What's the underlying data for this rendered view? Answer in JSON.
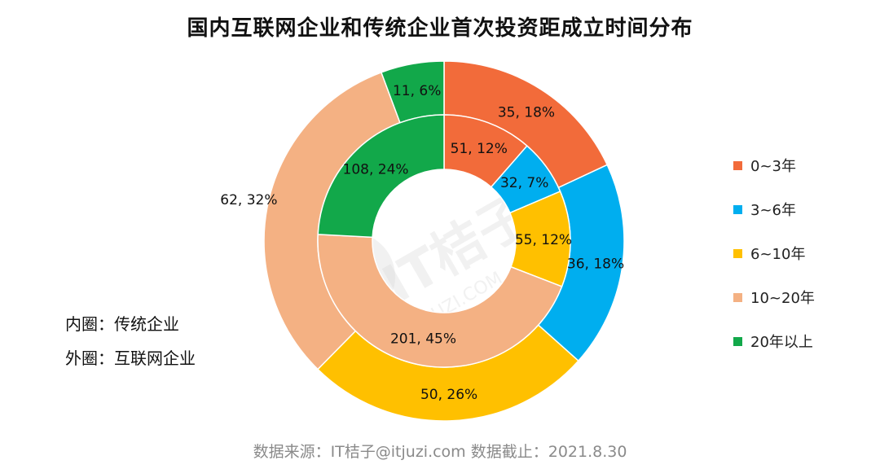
{
  "title": "国内互联网企业和传统企业首次投资距成立时间分布",
  "notes": {
    "inner": "内圈：传统企业",
    "outer": "外圈：互联网企业"
  },
  "footer": "数据来源：IT桔子@itjuzi.com  数据截止：2021.8.30",
  "watermark": {
    "main": "IT桔子",
    "sub": "ITJUZI.COM"
  },
  "colors": {
    "0~3年": "#f26b3a",
    "3~6年": "#00aeef",
    "6~10年": "#ffc000",
    "10~20年": "#f4b183",
    "20年以上": "#12a84a"
  },
  "chart_data": {
    "type": "donut",
    "categories": [
      "0~3年",
      "3~6年",
      "6~10年",
      "10~20年",
      "20年以上"
    ],
    "legend_position": "right",
    "series": [
      {
        "name": "传统企业",
        "ring": "inner",
        "values": [
          51,
          32,
          55,
          201,
          108
        ],
        "percent": [
          12,
          7,
          12,
          45,
          24
        ],
        "labels": [
          "51, 12%",
          "32, 7%",
          "55, 12%",
          "201, 45%",
          "108, 24%"
        ]
      },
      {
        "name": "互联网企业",
        "ring": "outer",
        "values": [
          35,
          36,
          50,
          62,
          11
        ],
        "percent": [
          18,
          18,
          26,
          32,
          6
        ],
        "labels": [
          "35, 18%",
          "36, 18%",
          "50, 26%",
          "62, 32%",
          "11, 6%"
        ]
      }
    ]
  }
}
